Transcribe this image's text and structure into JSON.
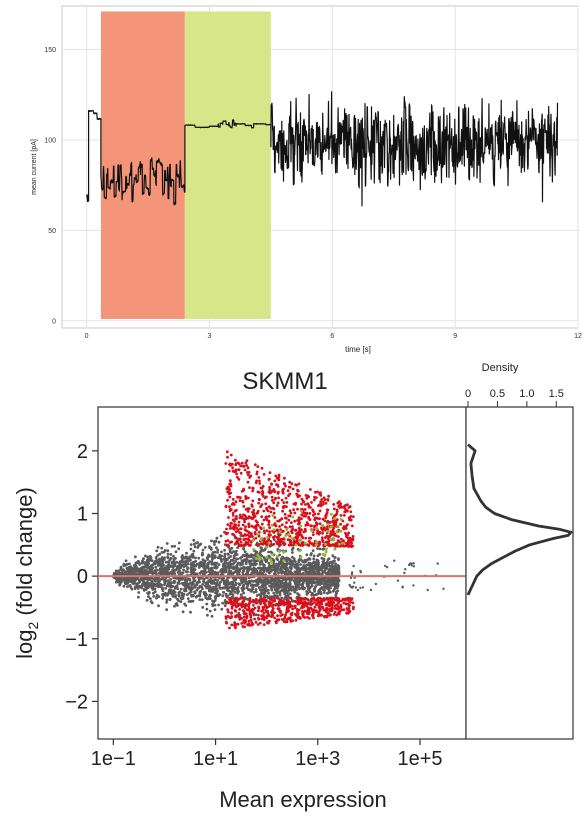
{
  "chart_data": [
    {
      "type": "line",
      "xlabel": "time [s]",
      "ylabel": "mean current [pA]",
      "xlim": [
        -0.6,
        12
      ],
      "ylim": [
        -4,
        174
      ],
      "xticks": [
        0,
        3,
        6,
        9,
        12
      ],
      "xtick_labels": [
        "0",
        "3",
        "6",
        "9",
        "12"
      ],
      "yticks": [
        0,
        50,
        100,
        150
      ],
      "ytick_labels": [
        "0",
        "50",
        "100",
        "150"
      ],
      "grid": true,
      "regions": [
        {
          "x0": 0.35,
          "x1": 2.4,
          "color": "#f4957a"
        },
        {
          "x0": 2.4,
          "x1": 4.5,
          "color": "#d8e68a"
        }
      ],
      "series": [
        {
          "color": "#111111",
          "segments": [
            {
              "x0": 0.0,
              "x1": 0.05,
              "mean": 68,
              "spread": 2,
              "switch_rate": 1.0
            },
            {
              "x0": 0.05,
              "x1": 0.35,
              "mean": 116,
              "spread": 4,
              "switch_rate": 0.2
            },
            {
              "x0": 0.35,
              "x1": 2.4,
              "mean": 79,
              "spread": 9,
              "switch_rate": 0.35
            },
            {
              "x0": 2.4,
              "x1": 4.5,
              "mean": 108,
              "spread": 1.5,
              "switch_rate": 0.1
            },
            {
              "x0": 4.5,
              "x1": 11.5,
              "mean": 97,
              "spread": 16,
              "switch_rate": 0.8
            }
          ]
        }
      ]
    },
    {
      "type": "scatter",
      "title": "SKMM1",
      "xlabel": "Mean expression",
      "ylabel": "log2 (fold change)",
      "ylabel_main": "log",
      "ylabel_sub": "2",
      "ylabel_rest": " (fold change)",
      "xscale": "log10",
      "xlim_log10": [
        -1.3,
        5.9
      ],
      "ylim": [
        -2.6,
        2.7
      ],
      "xticks_log10": [
        -1,
        1,
        3,
        5
      ],
      "xtick_labels": [
        "1e−1",
        "1e+1",
        "1e+3",
        "1e+5"
      ],
      "yticks": [
        -2,
        -1,
        0,
        1,
        2
      ],
      "ytick_labels": [
        "−2",
        "−1",
        "0",
        "1",
        "2"
      ],
      "reference_line": {
        "y": 0,
        "color": "#e0736a"
      },
      "groups": [
        {
          "color": "#5a5a5a",
          "log10_x_range": [
            -1.0,
            4.2
          ],
          "y_center": 0.0,
          "y_halfwidth_max": 0.85
        },
        {
          "color": "#d8101c",
          "log10_x_range": [
            1.2,
            3.7
          ],
          "y_upper_band": [
            0.45,
            2.0
          ],
          "y_lower_band": [
            -0.85,
            -0.35
          ]
        },
        {
          "color": "#8fba3b",
          "log10_x_range": [
            1.7,
            3.5
          ],
          "y_band": [
            0.15,
            1.95
          ]
        }
      ],
      "density_panel": {
        "label": "Density",
        "xlim": [
          0,
          1.75
        ],
        "xticks": [
          0,
          0.5,
          1.0,
          1.5
        ],
        "xtick_labels": [
          "0",
          "0.5",
          "1.0",
          "1.5"
        ],
        "y": [
          -0.3,
          -0.2,
          -0.1,
          0.0,
          0.1,
          0.2,
          0.3,
          0.4,
          0.5,
          0.6,
          0.65,
          0.7,
          0.75,
          0.8,
          0.9,
          1.0,
          1.1,
          1.2,
          1.4,
          1.6,
          1.8,
          2.0,
          2.1
        ],
        "density": [
          0.0,
          0.05,
          0.1,
          0.15,
          0.25,
          0.4,
          0.6,
          0.8,
          1.05,
          1.45,
          1.7,
          1.75,
          1.55,
          1.2,
          0.75,
          0.45,
          0.3,
          0.22,
          0.1,
          0.07,
          0.05,
          0.12,
          0.0
        ],
        "color": "#333333"
      }
    }
  ]
}
